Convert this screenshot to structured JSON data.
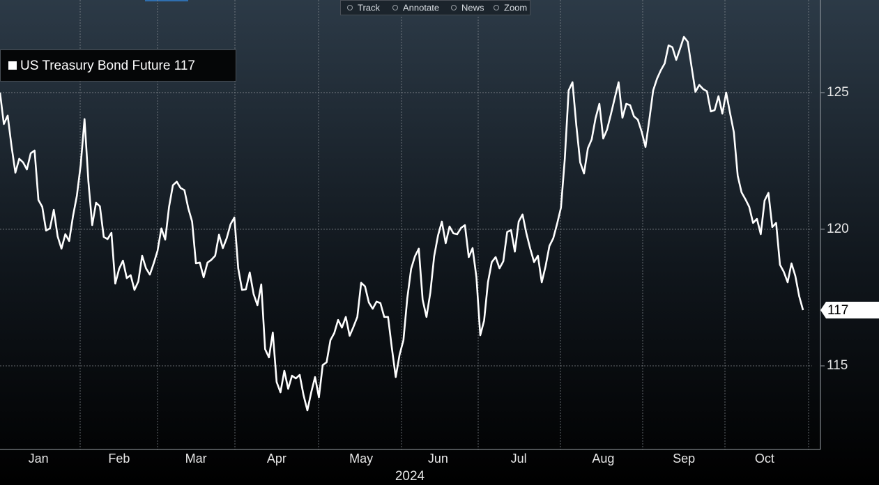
{
  "chart_data": {
    "type": "line",
    "toolbar": [
      "Track",
      "Annotate",
      "News",
      "Zoom"
    ],
    "x_label": "2024",
    "last_price_label": "117",
    "ylim": [
      111.94,
      128.39
    ],
    "yticks": [
      115,
      120,
      125
    ],
    "grid": true,
    "legend": "top-left",
    "categories": [
      null,
      null,
      null,
      null,
      null,
      null,
      null,
      null,
      null,
      null,
      "Jan",
      null,
      null,
      null,
      null,
      null,
      null,
      null,
      null,
      null,
      null,
      null,
      null,
      null,
      null,
      null,
      null,
      null,
      null,
      null,
      null,
      "Feb",
      null,
      null,
      null,
      null,
      null,
      null,
      null,
      null,
      null,
      null,
      null,
      null,
      null,
      null,
      null,
      null,
      null,
      null,
      null,
      "Mar",
      null,
      null,
      null,
      null,
      null,
      null,
      null,
      null,
      null,
      null,
      null,
      null,
      null,
      null,
      null,
      null,
      null,
      null,
      null,
      null,
      "Apr",
      null,
      null,
      null,
      null,
      null,
      null,
      null,
      null,
      null,
      null,
      null,
      null,
      null,
      null,
      null,
      null,
      null,
      null,
      null,
      null,
      null,
      "May",
      null,
      null,
      null,
      null,
      null,
      null,
      null,
      null,
      null,
      null,
      null,
      null,
      null,
      null,
      null,
      null,
      null,
      null,
      null,
      "Jun",
      null,
      null,
      null,
      null,
      null,
      null,
      null,
      null,
      null,
      null,
      null,
      null,
      null,
      null,
      null,
      null,
      null,
      null,
      null,
      null,
      "Jul",
      null,
      null,
      null,
      null,
      null,
      null,
      null,
      null,
      null,
      null,
      null,
      null,
      null,
      null,
      null,
      null,
      null,
      null,
      null,
      null,
      null,
      "Aug",
      null,
      null,
      null,
      null,
      null,
      null,
      null,
      null,
      null,
      null,
      null,
      null,
      null,
      null,
      null,
      null,
      null,
      null,
      null,
      null,
      "Sep",
      null,
      null,
      null,
      null,
      null,
      null,
      null,
      null,
      null,
      null,
      null,
      null,
      null,
      null,
      null,
      null,
      null,
      null,
      null,
      null,
      "Oct",
      null,
      null,
      null,
      null,
      null,
      null,
      null,
      null,
      null,
      null
    ],
    "series": [
      {
        "name": "US Treasury Bond Future 117",
        "color": "#ffffff",
        "values": [
          125.0,
          123.85,
          124.16,
          123.04,
          122.07,
          122.58,
          122.45,
          122.19,
          122.78,
          122.88,
          121.07,
          120.82,
          119.95,
          120.03,
          120.71,
          119.74,
          119.29,
          119.82,
          119.57,
          120.48,
          121.22,
          122.35,
          124.03,
          121.76,
          120.15,
          120.97,
          120.84,
          119.72,
          119.64,
          119.87,
          118.01,
          118.55,
          118.85,
          118.21,
          118.32,
          117.78,
          118.09,
          119.03,
          118.57,
          118.34,
          118.75,
          119.21,
          120.03,
          119.62,
          120.82,
          121.61,
          121.74,
          121.51,
          121.43,
          120.77,
          120.28,
          118.75,
          118.78,
          118.24,
          118.78,
          118.88,
          119.03,
          119.8,
          119.31,
          119.67,
          120.18,
          120.43,
          118.57,
          117.78,
          117.8,
          118.42,
          117.63,
          117.22,
          117.98,
          115.61,
          115.31,
          116.22,
          114.41,
          114.03,
          114.82,
          114.16,
          114.64,
          114.54,
          114.67,
          113.93,
          113.37,
          114.03,
          114.59,
          113.85,
          115.03,
          115.13,
          115.94,
          116.2,
          116.68,
          116.4,
          116.79,
          116.1,
          116.43,
          116.79,
          118.04,
          117.91,
          117.32,
          117.09,
          117.35,
          117.3,
          116.79,
          116.79,
          115.64,
          114.59,
          115.41,
          115.94,
          117.47,
          118.55,
          119.01,
          119.29,
          117.42,
          116.79,
          117.68,
          119.01,
          119.77,
          120.28,
          119.49,
          120.1,
          119.85,
          119.82,
          120.05,
          120.15,
          118.98,
          119.31,
          118.24,
          116.12,
          116.66,
          118.06,
          118.8,
          118.98,
          118.57,
          118.83,
          119.9,
          119.97,
          119.18,
          120.28,
          120.54,
          119.85,
          119.29,
          118.8,
          119.03,
          118.06,
          118.65,
          119.39,
          119.67,
          120.2,
          120.79,
          122.58,
          125.08,
          125.38,
          123.8,
          122.45,
          122.04,
          122.96,
          123.29,
          124.06,
          124.59,
          123.32,
          123.65,
          124.21,
          124.8,
          125.38,
          124.08,
          124.59,
          124.54,
          124.13,
          124.01,
          123.57,
          123.01,
          124.01,
          125.08,
          125.51,
          125.82,
          126.07,
          126.73,
          126.66,
          126.2,
          126.61,
          127.04,
          126.86,
          125.94,
          125.03,
          125.28,
          125.13,
          125.05,
          124.31,
          124.36,
          124.87,
          124.23,
          125.0,
          124.26,
          123.55,
          121.96,
          121.35,
          121.1,
          120.82,
          120.23,
          120.38,
          119.82,
          121.05,
          121.33,
          120.08,
          120.23,
          118.7,
          118.44,
          118.06,
          118.75,
          118.29,
          117.55,
          117.04
        ]
      }
    ]
  }
}
